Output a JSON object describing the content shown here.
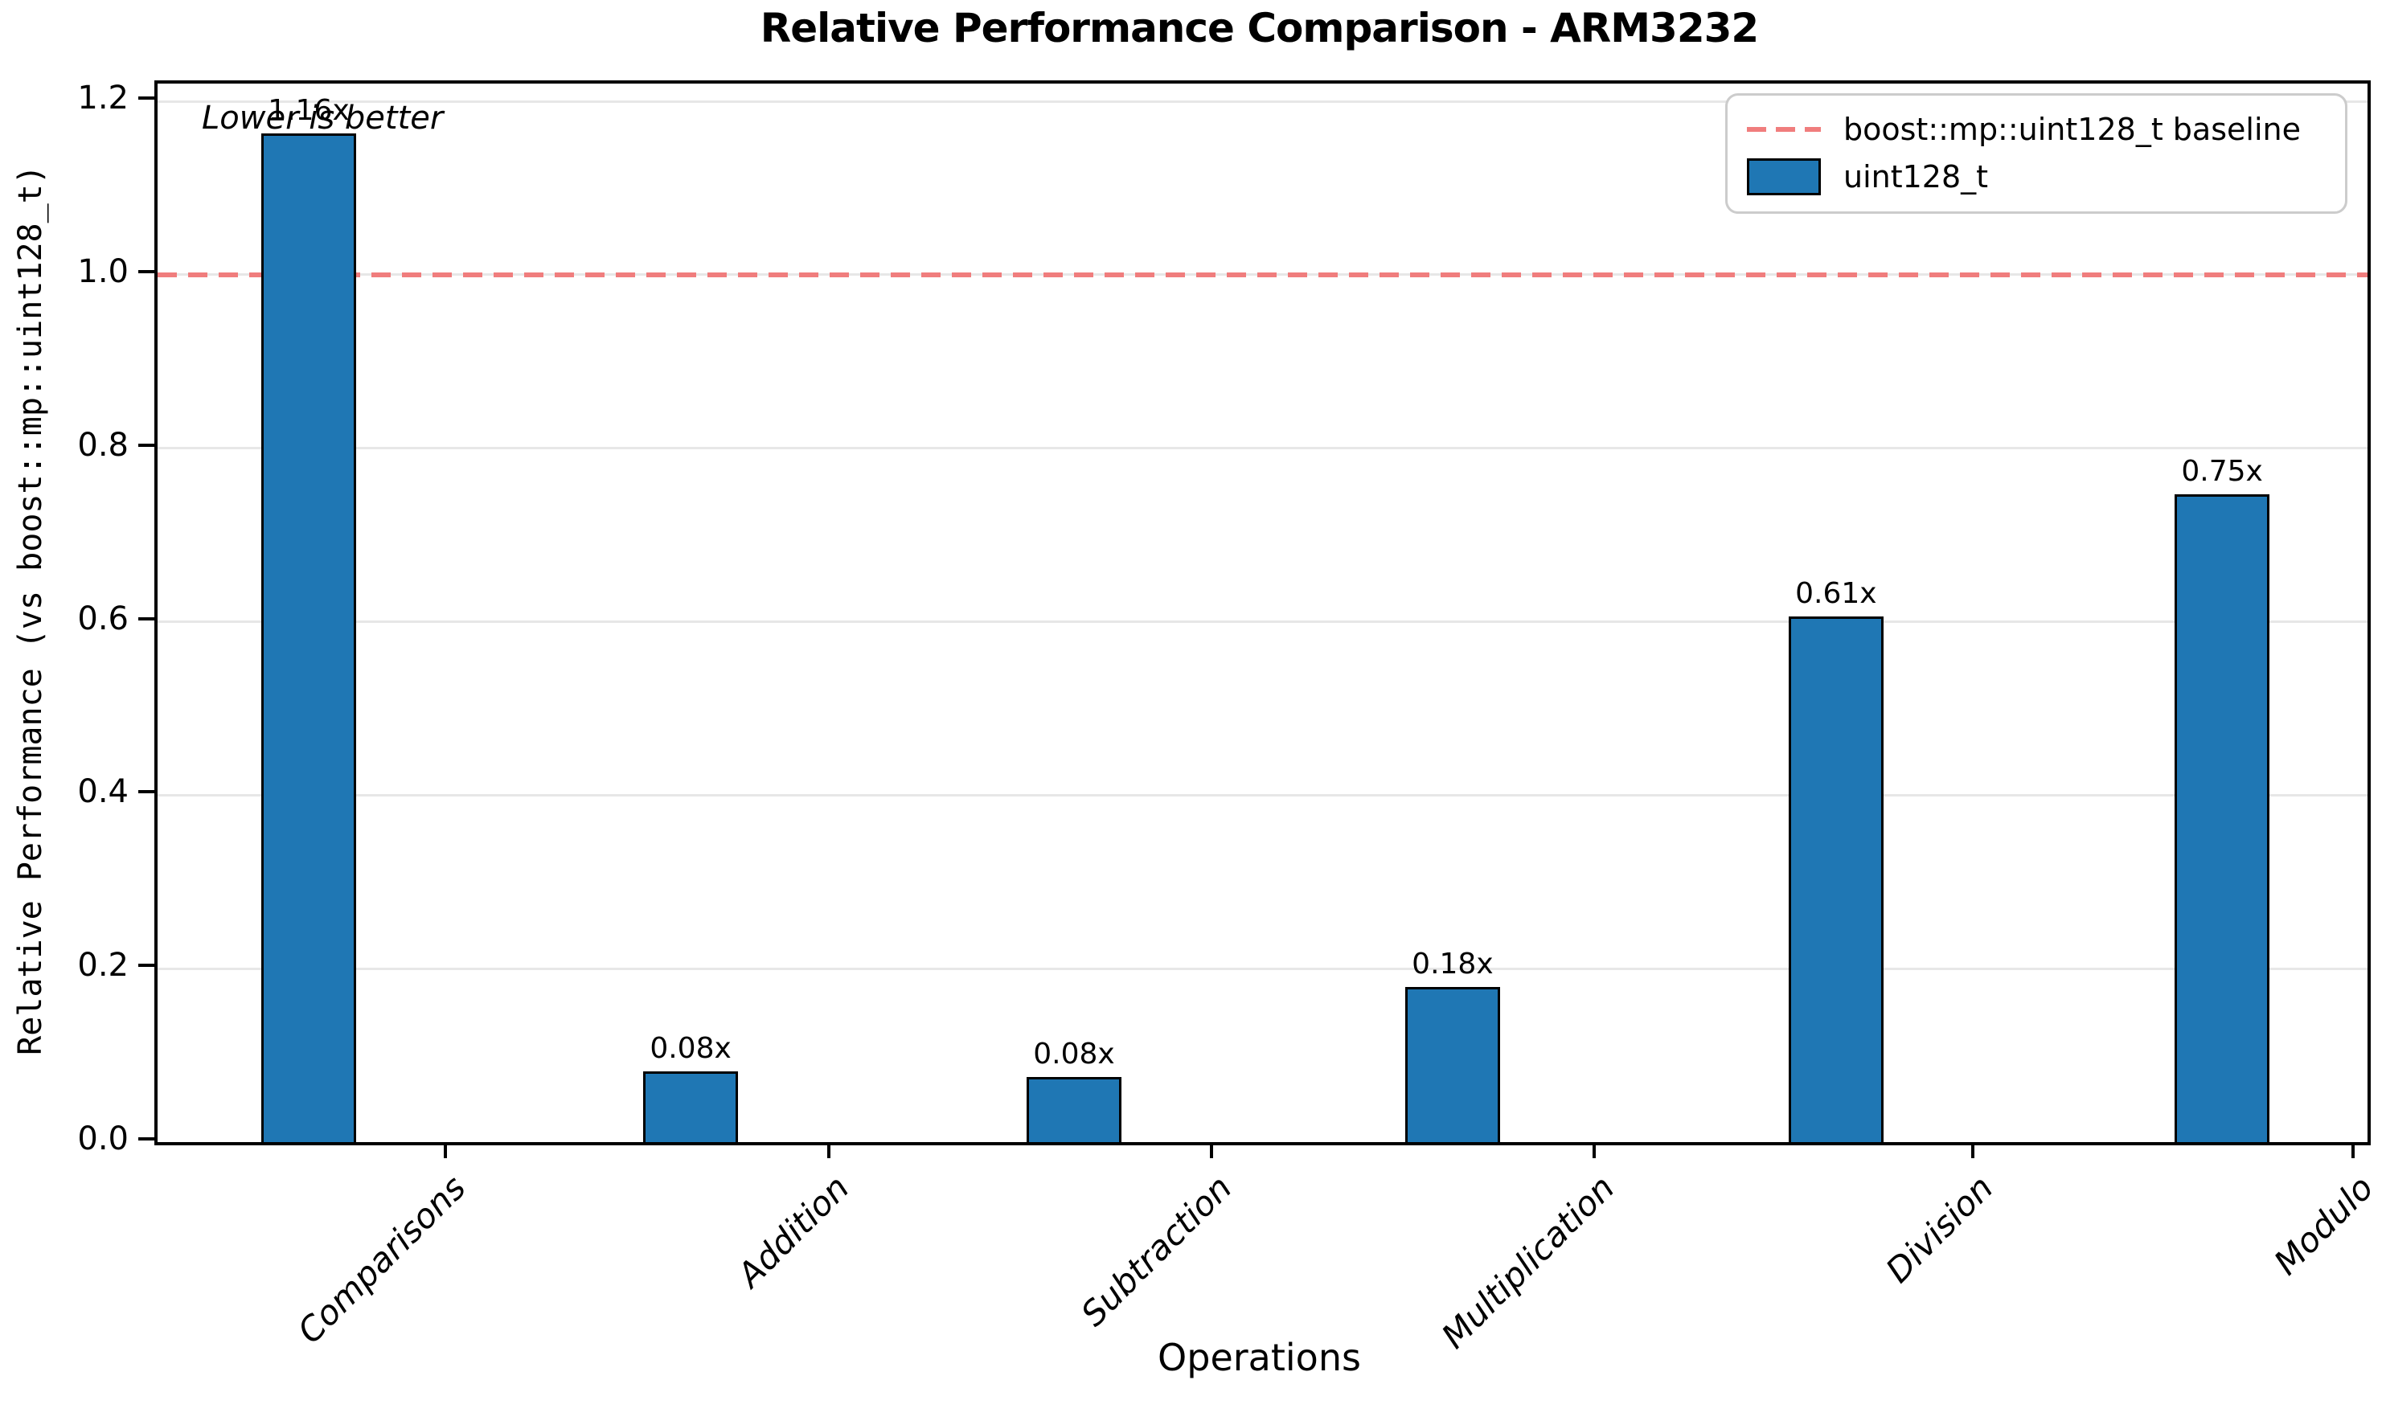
{
  "chart_data": {
    "type": "bar",
    "title": "Relative Performance Comparison - ARM3232",
    "xlabel": "Operations",
    "ylabel": "Relative Performance (vs boost::mp::uint128_t)",
    "categories": [
      "Comparisons",
      "Addition",
      "Subtraction",
      "Multiplication",
      "Division",
      "Modulo"
    ],
    "series": [
      {
        "name": "uint128_t",
        "color": "#1f77b4",
        "values": [
          1.16,
          0.08,
          0.08,
          0.18,
          0.61,
          0.75
        ],
        "values_precise": [
          1.163,
          0.082,
          0.075,
          0.179,
          0.606,
          0.747
        ],
        "bar_labels": [
          "1.16x",
          "0.08x",
          "0.08x",
          "0.18x",
          "0.61x",
          "0.75x"
        ]
      }
    ],
    "baseline": {
      "value": 1.0,
      "label": "boost::mp::uint128_t baseline",
      "color": "#f07d7d",
      "line_style": "dashed"
    },
    "annotation": "Lower is better",
    "ylim": [
      0.0,
      1.22
    ],
    "yticks": [
      0.0,
      0.2,
      0.4,
      0.6,
      0.8,
      1.0,
      1.2
    ],
    "grid": true,
    "legend_position": "upper right",
    "legend": [
      {
        "label": "boost::mp::uint128_t baseline",
        "swatch": "dashed-line",
        "color": "#f07d7d"
      },
      {
        "label": "uint128_t",
        "swatch": "filled-rect",
        "color": "#1f77b4"
      }
    ],
    "grid_color": "#e7e7e7",
    "bar_edge_color": "#000000"
  }
}
